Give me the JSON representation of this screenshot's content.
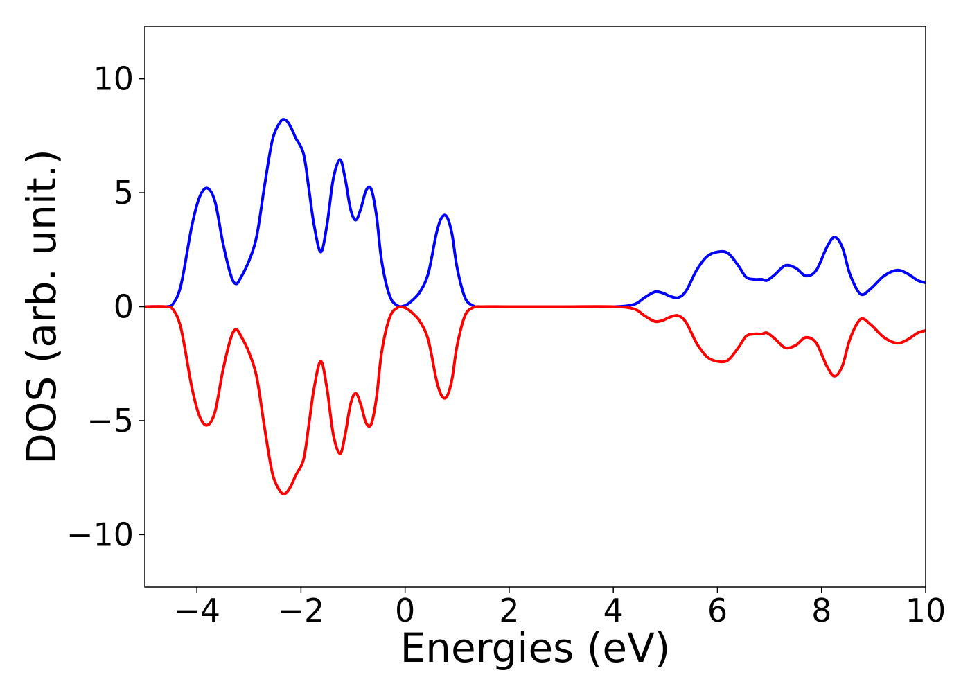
{
  "chart_data": {
    "type": "line",
    "title": "",
    "xlabel": "Energies (eV)",
    "ylabel": "DOS (arb. unit.)",
    "xlim": [
      -5,
      10
    ],
    "ylim": [
      -12.3,
      12.3
    ],
    "xticks": [
      -4,
      -2,
      0,
      2,
      4,
      6,
      8,
      10
    ],
    "yticks": [
      -10,
      -5,
      0,
      5,
      10
    ],
    "xtick_labels": [
      "−4",
      "−2",
      "0",
      "2",
      "4",
      "6",
      "8",
      "10"
    ],
    "ytick_labels": [
      "−10",
      "−5",
      "0",
      "5",
      "10"
    ],
    "grid": false,
    "legend": "none",
    "series": [
      {
        "color": "#0000ff",
        "x": [
          -5,
          -4.6,
          -4.45,
          -4.3,
          -4.1,
          -3.95,
          -3.8,
          -3.65,
          -3.5,
          -3.35,
          -3.25,
          -3.15,
          -3.0,
          -2.85,
          -2.7,
          -2.55,
          -2.4,
          -2.3,
          -2.2,
          -2.1,
          -1.95,
          -1.85,
          -1.75,
          -1.62,
          -1.5,
          -1.38,
          -1.25,
          -1.15,
          -1.05,
          -0.95,
          -0.85,
          -0.75,
          -0.65,
          -0.55,
          -0.45,
          -0.3,
          -0.15,
          0,
          0.15,
          0.3,
          0.45,
          0.6,
          0.7,
          0.8,
          0.9,
          1.0,
          1.15,
          1.3,
          1.45,
          2,
          3,
          4,
          4.4,
          4.6,
          4.8,
          4.95,
          5.1,
          5.25,
          5.4,
          5.6,
          5.8,
          6.0,
          6.2,
          6.4,
          6.55,
          6.7,
          6.85,
          6.95,
          7.1,
          7.3,
          7.5,
          7.7,
          7.9,
          8.1,
          8.25,
          8.4,
          8.55,
          8.75,
          8.95,
          9.2,
          9.45,
          9.65,
          9.85,
          10
        ],
        "y": [
          0,
          0,
          0.15,
          1.0,
          3.5,
          4.8,
          5.2,
          4.6,
          2.8,
          1.4,
          1.0,
          1.3,
          2.0,
          3.1,
          5.3,
          7.3,
          8.1,
          8.2,
          7.9,
          7.4,
          6.7,
          5.2,
          3.6,
          2.4,
          3.6,
          5.6,
          6.45,
          5.6,
          4.3,
          3.8,
          4.3,
          5.1,
          5.15,
          4.0,
          2.0,
          0.5,
          0.05,
          0.05,
          0.3,
          0.7,
          1.5,
          3.2,
          3.9,
          3.95,
          3.2,
          1.7,
          0.4,
          0.05,
          0,
          0,
          0,
          0,
          0.1,
          0.4,
          0.65,
          0.6,
          0.45,
          0.4,
          0.7,
          1.6,
          2.2,
          2.4,
          2.35,
          1.8,
          1.3,
          1.2,
          1.2,
          1.15,
          1.4,
          1.8,
          1.7,
          1.35,
          1.6,
          2.6,
          3.05,
          2.6,
          1.4,
          0.55,
          0.8,
          1.35,
          1.6,
          1.45,
          1.15,
          1.05
        ]
      },
      {
        "color": "#ff0000",
        "x": [
          -5,
          -4.6,
          -4.45,
          -4.3,
          -4.1,
          -3.95,
          -3.8,
          -3.65,
          -3.5,
          -3.35,
          -3.25,
          -3.15,
          -3.0,
          -2.85,
          -2.7,
          -2.55,
          -2.4,
          -2.3,
          -2.2,
          -2.1,
          -1.95,
          -1.85,
          -1.75,
          -1.62,
          -1.5,
          -1.38,
          -1.25,
          -1.15,
          -1.05,
          -0.95,
          -0.85,
          -0.75,
          -0.65,
          -0.55,
          -0.45,
          -0.3,
          -0.15,
          0,
          0.15,
          0.3,
          0.45,
          0.6,
          0.7,
          0.8,
          0.9,
          1.0,
          1.15,
          1.3,
          1.45,
          2,
          3,
          4,
          4.4,
          4.6,
          4.8,
          4.95,
          5.1,
          5.25,
          5.4,
          5.6,
          5.8,
          6.0,
          6.2,
          6.4,
          6.55,
          6.7,
          6.85,
          6.95,
          7.1,
          7.3,
          7.5,
          7.7,
          7.9,
          8.1,
          8.25,
          8.4,
          8.55,
          8.75,
          8.95,
          9.2,
          9.45,
          9.65,
          9.85,
          10
        ],
        "y": [
          0,
          0,
          -0.15,
          -1.0,
          -3.5,
          -4.8,
          -5.2,
          -4.6,
          -2.8,
          -1.4,
          -1.0,
          -1.3,
          -2.0,
          -3.1,
          -5.3,
          -7.3,
          -8.1,
          -8.2,
          -7.9,
          -7.4,
          -6.7,
          -5.2,
          -3.6,
          -2.4,
          -3.6,
          -5.6,
          -6.45,
          -5.6,
          -4.3,
          -3.8,
          -4.3,
          -5.1,
          -5.15,
          -4.0,
          -2.0,
          -0.5,
          -0.05,
          -0.05,
          -0.3,
          -0.7,
          -1.5,
          -3.2,
          -3.9,
          -3.95,
          -3.2,
          -1.7,
          -0.4,
          -0.05,
          0,
          0,
          0,
          0,
          -0.1,
          -0.4,
          -0.65,
          -0.6,
          -0.45,
          -0.4,
          -0.7,
          -1.6,
          -2.2,
          -2.4,
          -2.35,
          -1.8,
          -1.3,
          -1.2,
          -1.2,
          -1.15,
          -1.4,
          -1.8,
          -1.7,
          -1.35,
          -1.6,
          -2.6,
          -3.05,
          -2.6,
          -1.4,
          -0.55,
          -0.8,
          -1.35,
          -1.6,
          -1.45,
          -1.15,
          -1.05
        ]
      }
    ]
  }
}
